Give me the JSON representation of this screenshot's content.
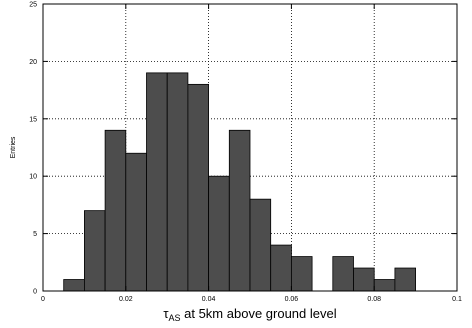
{
  "chart_data": {
    "type": "bar",
    "subtype": "histogram",
    "xlabel": {
      "main": "τ",
      "sub": "AS",
      "rest": " at 5km above ground level"
    },
    "ylabel": "Entries",
    "xlim": [
      0,
      0.1
    ],
    "ylim": [
      0,
      25
    ],
    "x_ticks": [
      {
        "value": 0,
        "label": "0"
      },
      {
        "value": 0.02,
        "label": "0.02"
      },
      {
        "value": 0.04,
        "label": "0.04"
      },
      {
        "value": 0.06,
        "label": "0.06"
      },
      {
        "value": 0.08,
        "label": "0.08"
      },
      {
        "value": 0.1,
        "label": "0.1"
      }
    ],
    "y_ticks": [
      {
        "value": 0,
        "label": "0"
      },
      {
        "value": 5,
        "label": "5"
      },
      {
        "value": 10,
        "label": "10"
      },
      {
        "value": 15,
        "label": "15"
      },
      {
        "value": 20,
        "label": "20"
      },
      {
        "value": 25,
        "label": "25"
      }
    ],
    "bin_width": 0.005,
    "bins": [
      {
        "x0": 0.005,
        "value": 1
      },
      {
        "x0": 0.01,
        "value": 7
      },
      {
        "x0": 0.015,
        "value": 14
      },
      {
        "x0": 0.02,
        "value": 12
      },
      {
        "x0": 0.025,
        "value": 19
      },
      {
        "x0": 0.03,
        "value": 19
      },
      {
        "x0": 0.035,
        "value": 18
      },
      {
        "x0": 0.04,
        "value": 10
      },
      {
        "x0": 0.045,
        "value": 14
      },
      {
        "x0": 0.05,
        "value": 8
      },
      {
        "x0": 0.055,
        "value": 4
      },
      {
        "x0": 0.06,
        "value": 3
      },
      {
        "x0": 0.07,
        "value": 3
      },
      {
        "x0": 0.075,
        "value": 2
      },
      {
        "x0": 0.08,
        "value": 1
      },
      {
        "x0": 0.085,
        "value": 2
      }
    ],
    "grid": true,
    "grid_style": "dotted",
    "colors": {
      "bar_fill": "#4d4d4d",
      "bar_edge": "#000000",
      "grid": "#000000",
      "axes": "#000000"
    }
  }
}
